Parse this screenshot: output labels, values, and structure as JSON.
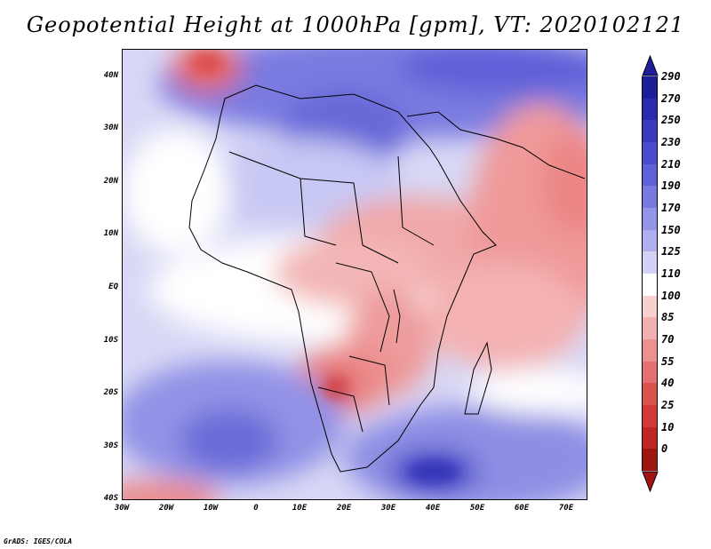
{
  "title": "Geopotential Height at 1000hPa [gpm], VT: 2020102121",
  "credit": "GrADS: IGES/COLA",
  "map": {
    "projection": "latlon",
    "lon_range": [
      -30,
      75
    ],
    "lat_range": [
      -40,
      45
    ],
    "lat_ticks": [
      "40N",
      "30N",
      "20N",
      "10N",
      "EQ",
      "10S",
      "20S",
      "30S",
      "40S"
    ],
    "lon_ticks": [
      "30W",
      "20W",
      "10W",
      "0",
      "10E",
      "20E",
      "30E",
      "40E",
      "50E",
      "60E",
      "70E"
    ],
    "field": "Geopotential height at 1000hPa",
    "units": "gpm",
    "valid_time": "2020102121"
  },
  "colorbar": {
    "levels": [
      "290",
      "270",
      "250",
      "230",
      "210",
      "190",
      "170",
      "150",
      "125",
      "110",
      "100",
      "85",
      "70",
      "55",
      "40",
      "25",
      "10",
      "0"
    ],
    "colors": [
      "#1e1e9a",
      "#2a2ab0",
      "#3a3ac0",
      "#4b4bcf",
      "#6060d8",
      "#7878e0",
      "#9494e8",
      "#b0b0f0",
      "#d2d2f6",
      "#ffffff",
      "#f8d0d0",
      "#f2b0b0",
      "#ec9090",
      "#e47070",
      "#dc5050",
      "#d23838",
      "#c02424",
      "#a01414"
    ]
  }
}
